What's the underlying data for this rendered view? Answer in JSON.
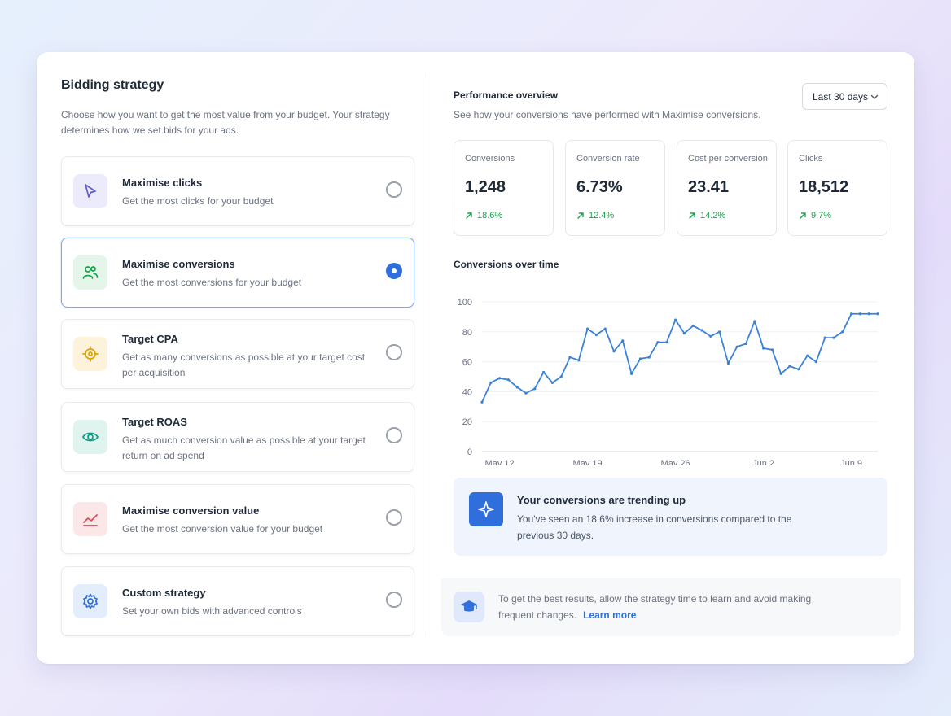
{
  "bidding": {
    "title": "Bidding strategy",
    "description": "Choose how you want to get the most value from your budget. Your strategy determines how we set bids for your ads.",
    "options": [
      {
        "title": "Maximise clicks",
        "description": "Get the most clicks for your budget",
        "icon": "cursor-icon",
        "color": "#5b5bd6",
        "bg": "#ebebfb",
        "selected": false
      },
      {
        "title": "Maximise conversions",
        "description": "Get the most conversions for your budget",
        "icon": "users-icon",
        "color": "#16a34a",
        "bg": "#e4f5e9",
        "selected": true
      },
      {
        "title": "Target CPA",
        "description": "Get as many conversions as possible at your target cost per acquisition",
        "icon": "target-icon",
        "color": "#e0a100",
        "bg": "#fdf3dc",
        "selected": false
      },
      {
        "title": "Target ROAS",
        "description": "Get as much conversion value as possible at your target return on ad spend",
        "icon": "eye-icon",
        "color": "#0f9d82",
        "bg": "#dff4ee",
        "selected": false
      },
      {
        "title": "Maximise conversion value",
        "description": "Get the most conversion value for your budget",
        "icon": "trend-up-icon",
        "color": "#d9465b",
        "bg": "#fbe6e8",
        "selected": false
      },
      {
        "title": "Custom strategy",
        "description": "Set your own bids with advanced controls",
        "icon": "gear-icon",
        "color": "#2f6edb",
        "bg": "#e4edfc",
        "selected": false
      }
    ]
  },
  "performance": {
    "title": "Performance overview",
    "subtitle": "See how your conversions have performed with Maximise conversions.",
    "range_label": "Last 30 days",
    "metrics": [
      {
        "label": "Conversions",
        "value": "1,248",
        "change": "18.6%"
      },
      {
        "label": "Conversion rate",
        "value": "6.73%",
        "change": "12.4%"
      },
      {
        "label": "Cost per conversion",
        "value": "23.41",
        "change": "14.2%"
      },
      {
        "label": "Clicks",
        "value": "18,512",
        "change": "9.7%"
      }
    ],
    "positive_color": "#16a34a"
  },
  "chart_data": {
    "type": "line",
    "title": "Conversions over time",
    "xlabel": "",
    "ylabel": "",
    "ylim": [
      0,
      100
    ],
    "yticks": [
      0,
      20,
      40,
      60,
      80,
      100
    ],
    "x": [
      1,
      2,
      3,
      4,
      5,
      6,
      7,
      8,
      9,
      10,
      11,
      12,
      13,
      14,
      15,
      16,
      17,
      18,
      19,
      20,
      21,
      22,
      23,
      24,
      25,
      26,
      27,
      28,
      29,
      30,
      31,
      32,
      33,
      34,
      35,
      36,
      37,
      38,
      39,
      40,
      41,
      42,
      43,
      44,
      45,
      46
    ],
    "xticks": [
      {
        "pos": 3,
        "label": "May 12"
      },
      {
        "pos": 13,
        "label": "May 19"
      },
      {
        "pos": 23,
        "label": "May 26"
      },
      {
        "pos": 33,
        "label": "Jun 2"
      },
      {
        "pos": 43,
        "label": "Jun 9"
      }
    ],
    "series": [
      {
        "values": [
          33,
          46,
          49,
          48,
          43,
          39,
          42,
          53,
          46,
          50,
          63,
          61,
          82,
          78,
          82,
          67,
          74,
          52,
          62,
          63,
          73,
          73,
          88,
          79,
          84,
          81,
          77,
          80,
          59,
          70,
          72,
          87,
          69,
          68,
          52,
          57,
          55,
          64,
          60,
          76,
          76,
          80,
          92,
          92,
          92,
          92
        ],
        "color": "#3b82d6"
      }
    ],
    "grid": true
  },
  "insight": {
    "title": "Your conversions are trending up",
    "text": "You've seen an 18.6% increase in conversions compared to the previous 30 days."
  },
  "tip": {
    "text": "To get the best results, allow the strategy time to learn and avoid making frequent changes.",
    "link": "Learn more"
  }
}
